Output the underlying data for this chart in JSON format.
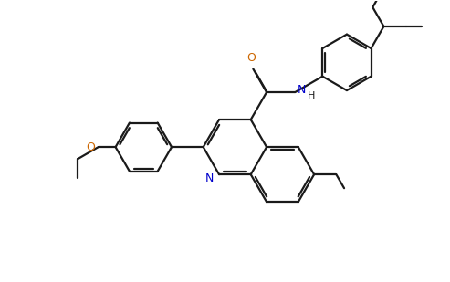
{
  "background_color": "#ffffff",
  "bond_color": "#1a1a1a",
  "nitrogen_color": "#0000cc",
  "oxygen_color": "#cc6600",
  "line_width": 1.6,
  "figsize": [
    4.93,
    3.09
  ],
  "dpi": 100,
  "xlim": [
    0,
    9.86
  ],
  "ylim": [
    0,
    6.18
  ]
}
